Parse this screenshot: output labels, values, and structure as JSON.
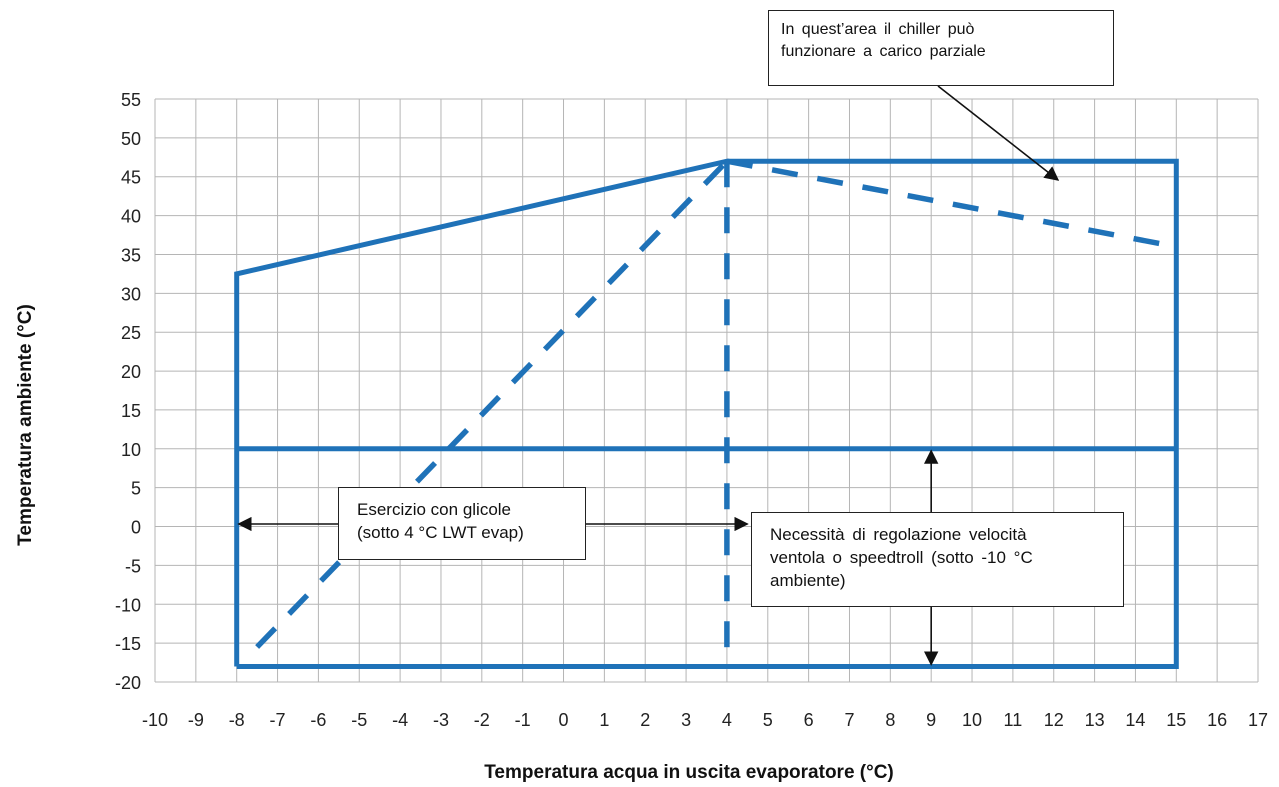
{
  "chart_data": {
    "type": "line",
    "xlabel": "Temperatura acqua in uscita evaporatore (°C)",
    "ylabel": "Temperatura ambiente (°C)",
    "xlim": [
      -10,
      17
    ],
    "ylim": [
      -20,
      55
    ],
    "x_ticks": [
      -10,
      -9,
      -8,
      -7,
      -6,
      -5,
      -4,
      -3,
      -2,
      -1,
      0,
      1,
      2,
      3,
      4,
      5,
      6,
      7,
      8,
      9,
      10,
      11,
      12,
      13,
      14,
      15,
      16,
      17
    ],
    "y_ticks": [
      -20,
      -15,
      -10,
      -5,
      0,
      5,
      10,
      15,
      20,
      25,
      30,
      35,
      40,
      45,
      50,
      55
    ],
    "grid": true,
    "series_color": "#1f72b8",
    "series": [
      {
        "style": "solid",
        "points": [
          [
            -8,
            -18
          ],
          [
            -8,
            32.5
          ],
          [
            4,
            47
          ],
          [
            15,
            47
          ],
          [
            15,
            -18
          ],
          [
            -8,
            -18
          ]
        ]
      },
      {
        "style": "solid",
        "points": [
          [
            -8,
            10
          ],
          [
            15,
            10
          ]
        ]
      },
      {
        "style": "dashed",
        "points": [
          [
            -7.5,
            -15.5
          ],
          [
            4,
            47
          ]
        ]
      },
      {
        "style": "dashed",
        "points": [
          [
            4,
            47
          ],
          [
            4,
            -18
          ]
        ]
      },
      {
        "style": "dashed",
        "points": [
          [
            4,
            47
          ],
          [
            15,
            36
          ]
        ]
      }
    ],
    "annotations": [
      {
        "lines": [
          "In quest’area il chiller può",
          "funzionare a carico parziale"
        ]
      },
      {
        "lines": [
          "Esercizio con glicole",
          "(sotto 4 °C LWT evap)"
        ]
      },
      {
        "lines": [
          "Necessità di regolazione velocità",
          "ventola o speedtroll (sotto -10 °C",
          "ambiente)"
        ]
      }
    ]
  }
}
